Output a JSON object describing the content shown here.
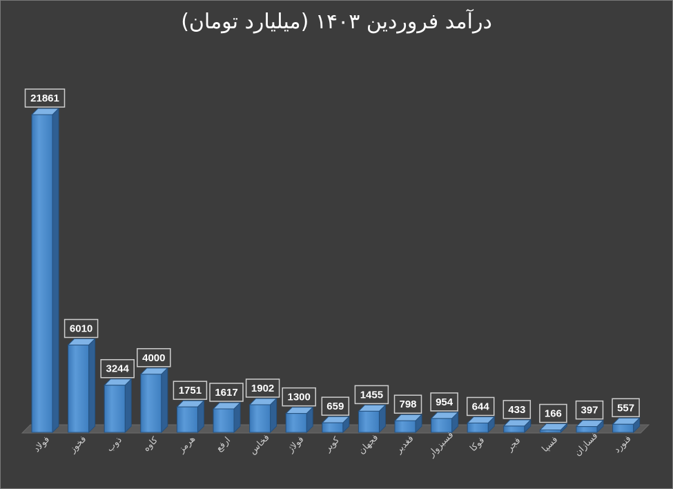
{
  "chart_data": {
    "type": "bar",
    "title": "درآمد فروردین ۱۴۰۳  (میلیارد تومان)",
    "categories": [
      "فولاد",
      "فخوز",
      "ذوب",
      "کاوه",
      "هرمز",
      "ارفع",
      "فخاس",
      "فولاژ",
      "کویر",
      "فجهان",
      "فغدیر",
      "فسبزوار",
      "فوکا",
      "فجر",
      "فسپا",
      "فسازان",
      "فنورد"
    ],
    "values": [
      21861,
      6010,
      3244,
      4000,
      1751,
      1617,
      1902,
      1300,
      659,
      1455,
      798,
      954,
      644,
      433,
      166,
      397,
      557
    ],
    "bar_color": "#4f8fd0",
    "grid": false,
    "legend": "none",
    "ylim": [
      0,
      21861
    ]
  }
}
